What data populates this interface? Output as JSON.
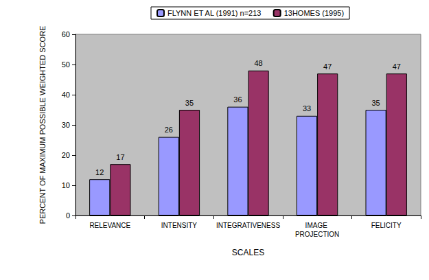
{
  "chart_data": {
    "type": "bar",
    "categories": [
      "RELEVANCE",
      "INTENSITY",
      "INTEGRATIVENESS",
      "IMAGE PROJECTION",
      "FELICITY"
    ],
    "series": [
      {
        "name": "FLYNN ET AL (1991) n=213",
        "color": "#9999FF",
        "values": [
          12,
          26,
          36,
          33,
          35
        ]
      },
      {
        "name": "13HOMES (1995)",
        "color": "#993366",
        "values": [
          17,
          35,
          48,
          47,
          47
        ]
      }
    ],
    "x_label": "SCALES",
    "y_label": "PERCENT OF MAXIMUM POSSIBLE WEIGHTED SCORE",
    "ylim": [
      0,
      60
    ],
    "yticks": [
      0,
      10,
      20,
      30,
      40,
      50,
      60
    ],
    "grid": false,
    "legend": "top",
    "data_labels": true
  }
}
